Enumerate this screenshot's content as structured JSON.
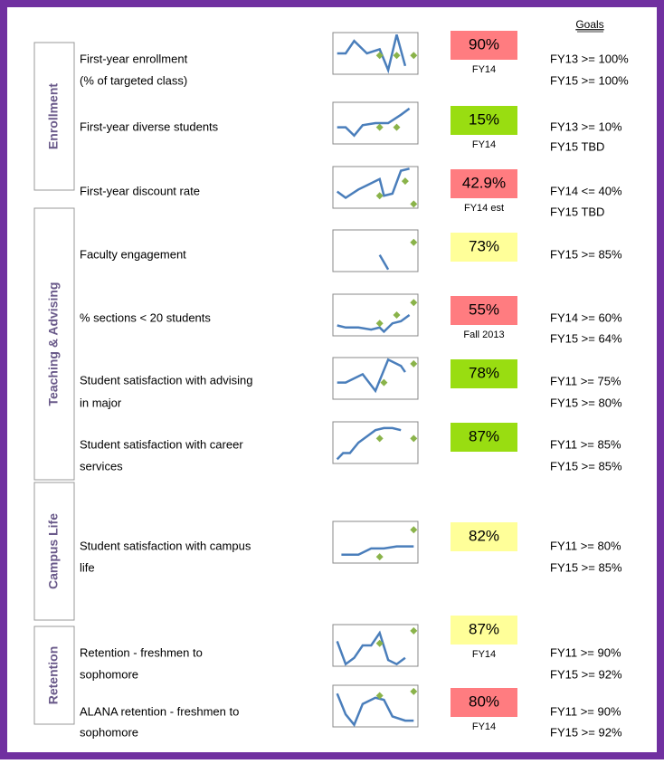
{
  "header": {
    "goals_title": "Goals"
  },
  "sections": [
    "Enrollment",
    "Teaching & Advising",
    "Campus Life",
    "Retention"
  ],
  "metrics": [
    {
      "label": [
        "First-year enrollment",
        "(% of targeted class)"
      ],
      "value": "90%",
      "color": "#ff7c80",
      "period": "FY14",
      "goals": [
        "FY13 >= 100%",
        "FY15 >= 100%"
      ]
    },
    {
      "label": [
        "First-year diverse students"
      ],
      "value": "15%",
      "color": "#99dd11",
      "period": "FY14",
      "goals": [
        "FY13 >= 10%",
        "FY15   TBD"
      ]
    },
    {
      "label": [
        "First-year discount rate"
      ],
      "value": "42.9%",
      "color": "#ff7c80",
      "period": "FY14 est",
      "goals": [
        "FY14 <= 40%",
        "FY15   TBD"
      ]
    },
    {
      "label": [
        "Faculty engagement"
      ],
      "value": "73%",
      "color": "#ffff99",
      "goals": [
        "FY15 >= 85%"
      ]
    },
    {
      "label": [
        "% sections < 20 students"
      ],
      "value": "55%",
      "color": "#ff7c80",
      "period": "Fall 2013",
      "goals": [
        "FY14 >= 60%",
        "FY15 >= 64%"
      ]
    },
    {
      "label": [
        "Student satisfaction with advising",
        "in major"
      ],
      "value": "78%",
      "color": "#99dd11",
      "goals": [
        "FY11 >= 75%",
        "FY15 >= 80%"
      ]
    },
    {
      "label": [
        "Student satisfaction with career",
        "services"
      ],
      "value": "87%",
      "color": "#99dd11",
      "goals": [
        "FY11 >= 85%",
        "FY15 >= 85%"
      ]
    },
    {
      "label": [
        "Student satisfaction with campus",
        "life"
      ],
      "value": "82%",
      "color": "#ffff99",
      "goals": [
        "FY11 >= 80%",
        "FY15 >= 85%"
      ]
    },
    {
      "label": [
        "Retention - freshmen to",
        "sophomore"
      ],
      "value": "87%",
      "color": "#ffff99",
      "period": "FY14",
      "goals": [
        "FY11 >= 90%",
        "FY15 >= 92%"
      ]
    },
    {
      "label": [
        "ALANA retention - freshmen to",
        "sophomore"
      ],
      "value": "80%",
      "color": "#ff7c80",
      "period": "FY14",
      "goals": [
        "FY11 >= 90%",
        "FY15 >= 92%"
      ]
    }
  ]
}
